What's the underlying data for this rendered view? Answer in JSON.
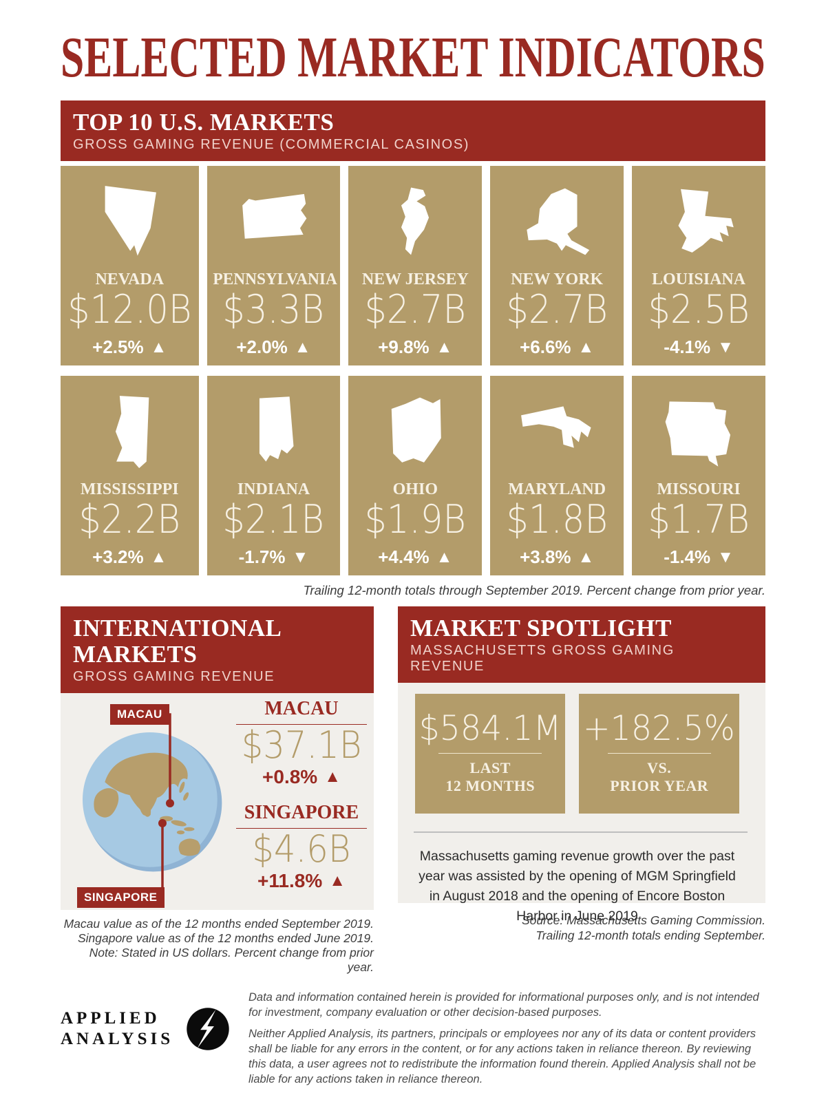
{
  "page": {
    "title": "SELECTED MARKET INDICATORS"
  },
  "icons": {
    "arrow_up": "▲",
    "arrow_down": "▼"
  },
  "colors": {
    "brand_red": "#992A22",
    "tan": "#B39C6A",
    "cream": "#F7F1E4",
    "panel_gray": "#F1EFEB",
    "ocean_blue": "#A6C9E3",
    "land_tan": "#B79E6C"
  },
  "top_markets": {
    "title": "TOP 10 U.S. MARKETS",
    "subtitle": "GROSS GAMING REVENUE (COMMERCIAL CASINOS)",
    "footnote": "Trailing 12-month totals through September 2019. Percent change from prior year.",
    "states": [
      {
        "name": "NEVADA",
        "icon": "nevada",
        "value": "$12.0B",
        "change": "+2.5%",
        "direction": "up"
      },
      {
        "name": "PENNSYLVANIA",
        "icon": "pennsylvania",
        "value": "$3.3B",
        "change": "+2.0%",
        "direction": "up"
      },
      {
        "name": "NEW JERSEY",
        "icon": "new-jersey",
        "value": "$2.7B",
        "change": "+9.8%",
        "direction": "up"
      },
      {
        "name": "NEW YORK",
        "icon": "new-york",
        "value": "$2.7B",
        "change": "+6.6%",
        "direction": "up"
      },
      {
        "name": "LOUISIANA",
        "icon": "louisiana",
        "value": "$2.5B",
        "change": "-4.1%",
        "direction": "down"
      },
      {
        "name": "MISSISSIPPI",
        "icon": "mississippi",
        "value": "$2.2B",
        "change": "+3.2%",
        "direction": "up"
      },
      {
        "name": "INDIANA",
        "icon": "indiana",
        "value": "$2.1B",
        "change": "-1.7%",
        "direction": "down"
      },
      {
        "name": "OHIO",
        "icon": "ohio",
        "value": "$1.9B",
        "change": "+4.4%",
        "direction": "up"
      },
      {
        "name": "MARYLAND",
        "icon": "maryland",
        "value": "$1.8B",
        "change": "+3.8%",
        "direction": "up"
      },
      {
        "name": "MISSOURI",
        "icon": "missouri",
        "value": "$1.7B",
        "change": "-1.4%",
        "direction": "down"
      }
    ]
  },
  "international": {
    "title": "INTERNATIONAL MARKETS",
    "subtitle": "GROSS GAMING REVENUE",
    "map_labels": {
      "macau": "MACAU",
      "singapore": "SINGAPORE"
    },
    "markets": [
      {
        "name": "MACAU",
        "value": "$37.1B",
        "change": "+0.8%",
        "direction": "up"
      },
      {
        "name": "SINGAPORE",
        "value": "$4.6B",
        "change": "+11.8%",
        "direction": "up"
      }
    ],
    "footnotes": [
      "Macau value as of the 12 months ended September 2019.",
      "Singapore value as of the 12 months ended June 2019.",
      "Note: Stated in US dollars. Percent change from prior year."
    ]
  },
  "spotlight": {
    "title": "MARKET SPOTLIGHT",
    "subtitle": "MASSACHUSETTS GROSS GAMING REVENUE",
    "stats": [
      {
        "value": "$584.1M",
        "label_lines": [
          "LAST",
          "12 MONTHS"
        ]
      },
      {
        "value": "+182.5%",
        "label_lines": [
          "VS.",
          "PRIOR YEAR"
        ]
      }
    ],
    "description": "Massachusetts gaming revenue growth over the past year was assisted by the opening of MGM Springfield in August 2018 and the opening of Encore Boston Harbor in June 2019",
    "source_lines": [
      "Source: Massachusetts Gaming Commission.",
      "Trailing 12-month totals ending September."
    ]
  },
  "footer": {
    "brand_lines": [
      "APPLIED",
      "ANALYSIS"
    ],
    "disclaimers": [
      "Data and information contained herein is provided for informational purposes only, and is not intended for investment, company evaluation or other decision-based purposes.",
      "Neither Applied Analysis, its partners, principals or employees nor any of its data or content providers shall be liable for any errors in the content, or for any actions taken in reliance thereon. By reviewing this data, a user agrees not to redistribute the information found therein. Applied Analysis shall not be liable for any actions taken in reliance thereon."
    ]
  },
  "chart_data": [
    {
      "type": "bar",
      "title": "Top 10 U.S. Markets — Gross Gaming Revenue (Commercial Casinos)",
      "categories": [
        "Nevada",
        "Pennsylvania",
        "New Jersey",
        "New York",
        "Louisiana",
        "Mississippi",
        "Indiana",
        "Ohio",
        "Maryland",
        "Missouri"
      ],
      "values_usd_billions": [
        12.0,
        3.3,
        2.7,
        2.7,
        2.5,
        2.2,
        2.1,
        1.9,
        1.8,
        1.7
      ],
      "pct_change_vs_prior_year": [
        2.5,
        2.0,
        9.8,
        6.6,
        -4.1,
        3.2,
        -1.7,
        4.4,
        3.8,
        -1.4
      ],
      "note": "Trailing 12-month totals through September 2019. Percent change from prior year."
    },
    {
      "type": "bar",
      "title": "International Markets — Gross Gaming Revenue",
      "categories": [
        "Macau",
        "Singapore"
      ],
      "values_usd_billions": [
        37.1,
        4.6
      ],
      "pct_change_vs_prior_year": [
        0.8,
        11.8
      ],
      "note": "Macau value as of the 12 months ended September 2019. Singapore value as of the 12 months ended June 2019. Stated in US dollars."
    },
    {
      "type": "table",
      "title": "Market Spotlight — Massachusetts Gross Gaming Revenue",
      "values": {
        "last_12_months_usd_millions": 584.1,
        "pct_change_vs_prior_year": 182.5
      },
      "note": "Trailing 12-month totals ending September. Source: Massachusetts Gaming Commission."
    }
  ]
}
